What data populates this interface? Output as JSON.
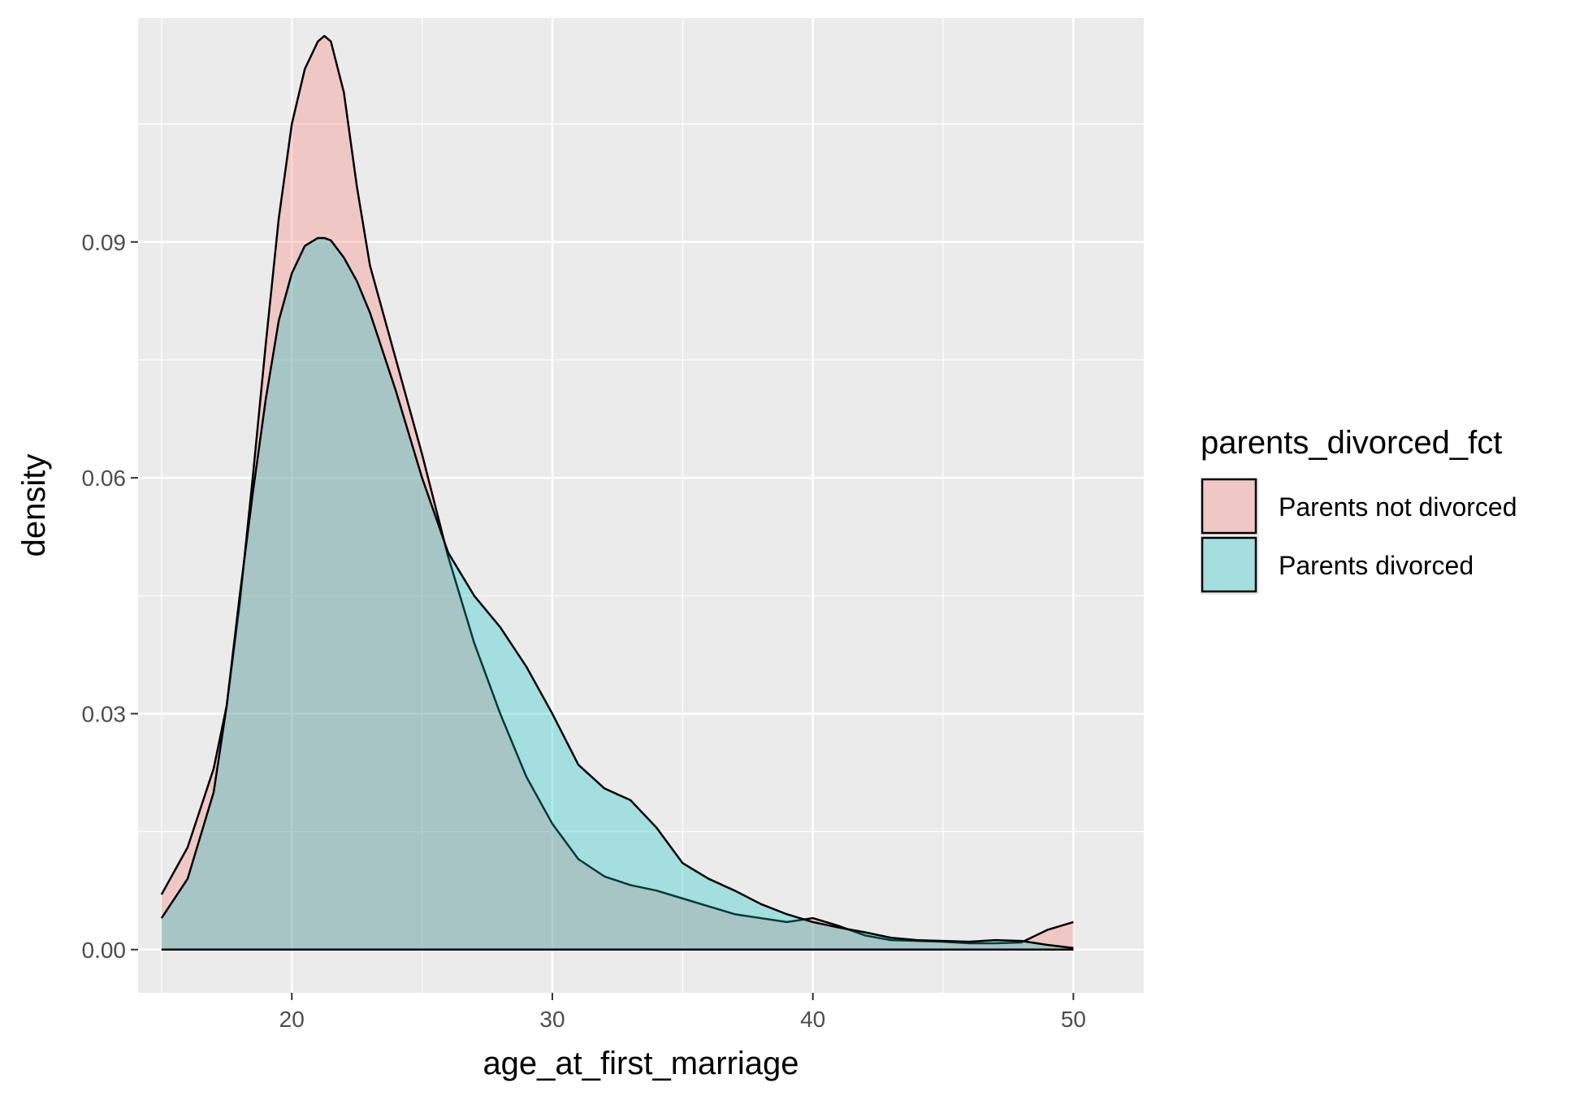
{
  "chart_data": {
    "type": "area",
    "xlabel": "age_at_first_marriage",
    "ylabel": "density",
    "xlim": [
      14.1,
      52.7
    ],
    "ylim": [
      -0.0055,
      0.1185
    ],
    "x_ticks": [
      20,
      30,
      40,
      50
    ],
    "x_tick_labels": [
      "20",
      "30",
      "40",
      "50"
    ],
    "y_ticks": [
      0.0,
      0.03,
      0.06,
      0.09
    ],
    "y_tick_labels": [
      "0.00",
      "0.03",
      "0.06",
      "0.09"
    ],
    "grid": true,
    "panel_background": "#ebebeb",
    "legend": {
      "title": "parents_divorced_fct",
      "position": "right",
      "entries": [
        "Parents not divorced",
        "Parents divorced"
      ]
    },
    "series": [
      {
        "name": "Parents not divorced",
        "color": "#f8766d",
        "fill_opacity": 0.3,
        "x": [
          15,
          16,
          17,
          17.5,
          18,
          18.5,
          19,
          19.5,
          20,
          20.5,
          21,
          21.25,
          21.5,
          22,
          22.5,
          23,
          23.5,
          24,
          25,
          26,
          27,
          28,
          29,
          30,
          31,
          32,
          33,
          34,
          35,
          36,
          37,
          38,
          39,
          40,
          41,
          42,
          43,
          44,
          45,
          46,
          47,
          48,
          49,
          50
        ],
        "y": [
          0.007,
          0.013,
          0.023,
          0.031,
          0.044,
          0.06,
          0.077,
          0.093,
          0.105,
          0.112,
          0.1155,
          0.1162,
          0.1155,
          0.109,
          0.097,
          0.087,
          0.081,
          0.075,
          0.063,
          0.05,
          0.039,
          0.03,
          0.022,
          0.016,
          0.0115,
          0.0093,
          0.0082,
          0.0075,
          0.0065,
          0.0055,
          0.0045,
          0.004,
          0.0035,
          0.004,
          0.003,
          0.0018,
          0.0012,
          0.0011,
          0.001,
          0.0008,
          0.0008,
          0.0009,
          0.0025,
          0.0035
        ]
      },
      {
        "name": "Parents divorced",
        "color": "#00bfc4",
        "fill_opacity": 0.3,
        "x": [
          15,
          16,
          17,
          17.5,
          18,
          18.5,
          19,
          19.5,
          20,
          20.5,
          21,
          21.25,
          21.5,
          22,
          22.5,
          23,
          23.5,
          24,
          25,
          26,
          27,
          28,
          29,
          30,
          31,
          32,
          33,
          34,
          35,
          36,
          37,
          38,
          39,
          40,
          41,
          42,
          43,
          44,
          45,
          46,
          47,
          48,
          49,
          50
        ],
        "y": [
          0.004,
          0.009,
          0.02,
          0.031,
          0.045,
          0.058,
          0.07,
          0.08,
          0.086,
          0.0895,
          0.0905,
          0.0905,
          0.0902,
          0.088,
          0.085,
          0.081,
          0.076,
          0.071,
          0.06,
          0.0505,
          0.045,
          0.041,
          0.036,
          0.03,
          0.0235,
          0.0205,
          0.019,
          0.0155,
          0.011,
          0.009,
          0.0075,
          0.0058,
          0.0045,
          0.0035,
          0.0028,
          0.0022,
          0.0015,
          0.0012,
          0.0011,
          0.001,
          0.0012,
          0.0011,
          0.0006,
          0.0002
        ]
      }
    ]
  }
}
